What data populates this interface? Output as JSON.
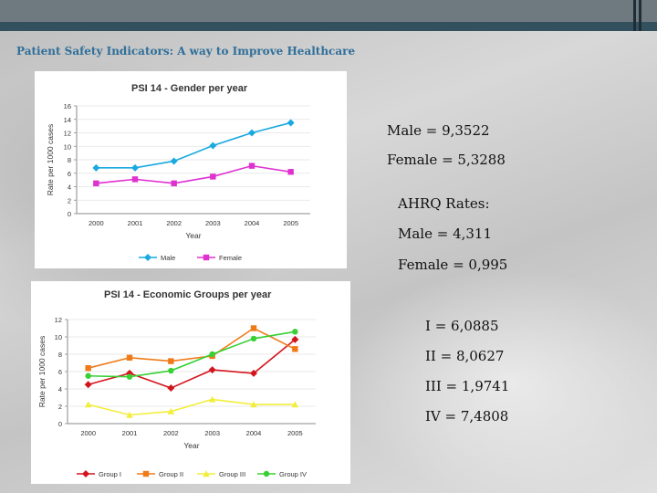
{
  "slide": {
    "title": "Patient Safety Indicators: A way to Improve Healthcare",
    "text_items": [
      {
        "id": "male1",
        "text": "Male = 9,3522"
      },
      {
        "id": "female1",
        "text": "Female = 5,3288"
      },
      {
        "id": "ahrq",
        "text": "AHRQ Rates:"
      },
      {
        "id": "male2",
        "text": "Male = 4,311"
      },
      {
        "id": "female2",
        "text": "Female = 0,995"
      },
      {
        "id": "g1",
        "text": "I = 6,0885"
      },
      {
        "id": "g2",
        "text": "II = 8,0627"
      },
      {
        "id": "g3",
        "text": "III = 1,9741"
      },
      {
        "id": "g4",
        "text": "IV = 7,4808"
      }
    ]
  },
  "chart_data": [
    {
      "type": "line",
      "title": "PSI 14 - Gender per year",
      "xlabel": "Year",
      "ylabel": "Rate per 1000 cases",
      "x": [
        "2000",
        "2001",
        "2002",
        "2003",
        "2004",
        "2005"
      ],
      "ylim": [
        0,
        16
      ],
      "yticks": [
        0,
        2,
        4,
        6,
        8,
        10,
        12,
        14,
        16
      ],
      "legend_position": "bottom",
      "series": [
        {
          "name": "Male",
          "color": "#19a9e0",
          "marker": "diamond",
          "values": [
            6.8,
            6.8,
            7.8,
            10.1,
            12.0,
            13.5
          ]
        },
        {
          "name": "Female",
          "color": "#e030d0",
          "marker": "square",
          "values": [
            4.5,
            5.1,
            4.5,
            5.5,
            7.1,
            6.2
          ]
        }
      ]
    },
    {
      "type": "line",
      "title": "PSI 14 - Economic Groups per year",
      "xlabel": "Year",
      "ylabel": "Rate per 1000 cases",
      "x": [
        "2000",
        "2001",
        "2002",
        "2003",
        "2004",
        "2005"
      ],
      "ylim": [
        0,
        12
      ],
      "yticks": [
        0,
        2,
        4,
        6,
        8,
        10,
        12
      ],
      "legend_position": "bottom",
      "series": [
        {
          "name": "Group I",
          "color": "#d4141c",
          "marker": "diamond",
          "values": [
            4.5,
            5.8,
            4.1,
            6.2,
            5.8,
            9.7
          ]
        },
        {
          "name": "Group II",
          "color": "#f07a18",
          "marker": "square",
          "values": [
            6.4,
            7.6,
            7.2,
            7.8,
            11.0,
            8.6
          ]
        },
        {
          "name": "Group III",
          "color": "#f2ee3a",
          "marker": "triangle",
          "values": [
            2.2,
            1.0,
            1.4,
            2.8,
            2.2,
            2.2
          ]
        },
        {
          "name": "Group IV",
          "color": "#38d034",
          "marker": "circle",
          "values": [
            5.5,
            5.4,
            6.1,
            8.0,
            9.8,
            10.6
          ]
        }
      ]
    }
  ]
}
